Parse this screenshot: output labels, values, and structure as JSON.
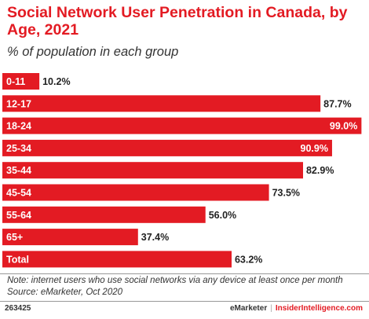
{
  "header": {
    "title": "Social Network User Penetration in Canada, by Age, 2021",
    "subtitle": "% of population in each group"
  },
  "chart_data": {
    "type": "bar",
    "orientation": "horizontal",
    "categories": [
      "0-11",
      "12-17",
      "18-24",
      "25-34",
      "35-44",
      "45-54",
      "55-64",
      "65+",
      "Total"
    ],
    "values": [
      10.2,
      87.7,
      99.0,
      90.9,
      82.9,
      73.5,
      56.0,
      37.4,
      63.2
    ],
    "value_labels": [
      "10.2%",
      "87.7%",
      "99.0%",
      "90.9%",
      "82.9%",
      "73.5%",
      "56.0%",
      "37.4%",
      "63.2%"
    ],
    "bar_color": "#e31b23",
    "xlim": [
      0,
      100
    ]
  },
  "notes": {
    "note": "Note: internet users who use social networks via any device at least once per month",
    "source": "Source: eMarketer, Oct 2020"
  },
  "footer": {
    "id": "263425",
    "brand1": "eMarketer",
    "separator": "|",
    "brand2": "InsiderIntelligence.com"
  }
}
